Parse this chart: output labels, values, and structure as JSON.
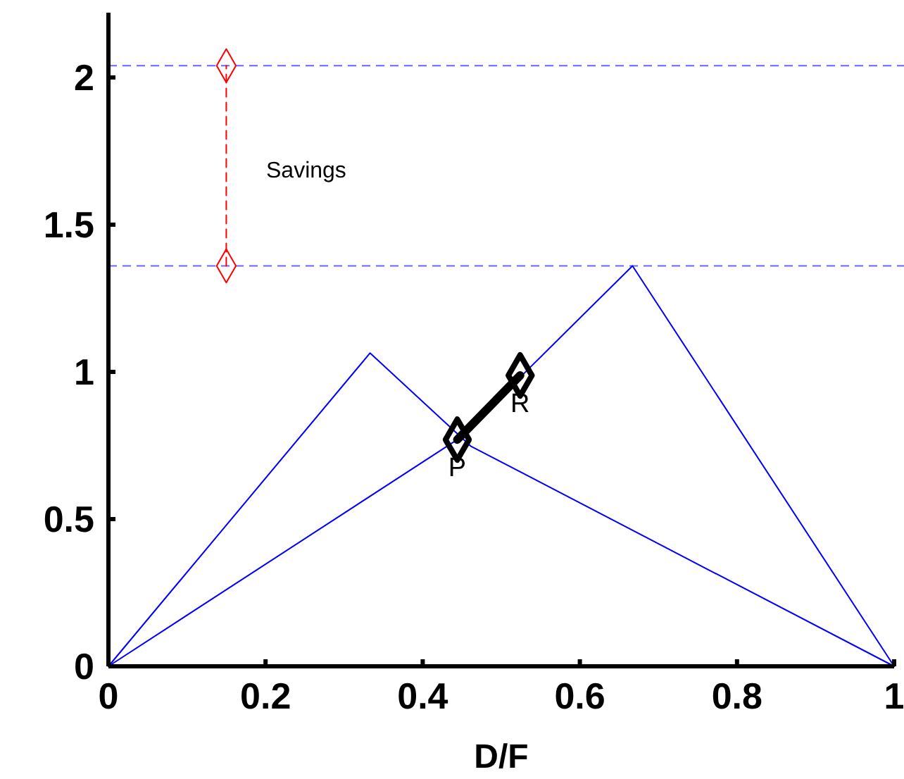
{
  "chart_data": {
    "type": "line",
    "xlabel": "D/F",
    "xlim": [
      0,
      1
    ],
    "ylim": [
      0,
      2.22
    ],
    "xticks": [
      0,
      0.2,
      0.4,
      0.6,
      0.8,
      1
    ],
    "yticks": [
      0,
      0.5,
      1,
      1.5,
      2
    ],
    "grid": false,
    "series": [
      {
        "color": "#0000ff",
        "x": [
          0,
          0.333,
          0.461,
          1
        ],
        "values": [
          0,
          1.064,
          0.748,
          0
        ],
        "marker": "none",
        "line_style": "solid"
      },
      {
        "color": "#0000ff",
        "x": [
          0,
          0.444,
          0.667,
          1
        ],
        "values": [
          0,
          0.77,
          1.36,
          0
        ],
        "marker": "none",
        "line_style": "solid"
      },
      {
        "color": "#ff0000",
        "x": [
          0.15,
          0.15
        ],
        "values": [
          1.36,
          2.04
        ],
        "marker": "diamond",
        "line_style": "dashed"
      },
      {
        "color": "#000000",
        "x": [
          0.444,
          0.524
        ],
        "values": [
          0.77,
          0.988
        ],
        "marker": "diamond",
        "line_style": "solid"
      }
    ],
    "ref_lines": [
      {
        "axis": "y",
        "value": 2.04,
        "color": "#6666ff",
        "line_style": "dashed"
      },
      {
        "axis": "y",
        "value": 1.36,
        "color": "#6666ff",
        "line_style": "dashed"
      }
    ],
    "annotations": [
      "Savings",
      {
        "text": "P",
        "x": 0.444,
        "y": 0.77
      },
      {
        "text": "R",
        "x": 0.524,
        "y": 0.988
      }
    ]
  }
}
